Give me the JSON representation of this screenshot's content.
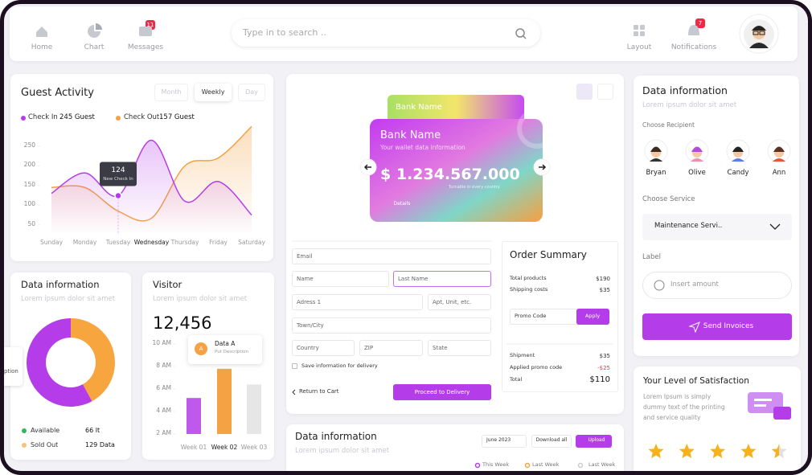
{
  "nav": {
    "items": [
      "Home",
      "Chart",
      "Messages"
    ],
    "messages_badge": 11,
    "search": "Type in to search ..",
    "right_items": [
      "Layout",
      "Notifications"
    ],
    "notifications_badge": 7
  },
  "guest_activity": {
    "title": "Guest Activity",
    "tabs": [
      "Month",
      "Weekly",
      "Day"
    ],
    "active_tab": 1,
    "chart_data": {
      "type": "line",
      "categories": [
        "Sunday",
        "Monday",
        "Tuesday",
        "Wednesday",
        "Thursday",
        "Friday",
        "Saturday"
      ],
      "highlight_category": 3,
      "series": [
        {
          "name": "Check In",
          "total": "245 Guest",
          "color": "#b43ce9",
          "values": [
            130,
            182,
            124,
            265,
            110,
            160,
            75
          ]
        },
        {
          "name": "Check Out",
          "total": "157 Guest",
          "color": "#f5a244",
          "values": [
            145,
            145,
            85,
            67,
            200,
            220,
            300
          ]
        }
      ],
      "ylim": [
        25,
        315
      ],
      "yticks": [
        250,
        200,
        150,
        100,
        50
      ],
      "tooltip": {
        "series": 0,
        "index": 2,
        "label": "New Check In"
      }
    }
  },
  "inventory": {
    "title": "Data information",
    "subtitle": "Lorem ipsum dolor sit amet",
    "clipped_label": "ption",
    "chart_data": {
      "type": "donut",
      "values": [
        42,
        58
      ],
      "colors": [
        "#f7a53f",
        "#b43ce9"
      ]
    },
    "legend": [
      {
        "name": "Available",
        "value": "66 lt",
        "color": "#2eb857"
      },
      {
        "name": "Sold Out",
        "value": "129 Data",
        "color": "#f7c27a"
      }
    ]
  },
  "visitor": {
    "title": "Visitor",
    "subtitle": "Lorem ipsum dolor sit amet",
    "total": "12,456",
    "chart_data": {
      "type": "bar",
      "categories": [
        "Week 01",
        "Week 02",
        "Week 03"
      ],
      "values": [
        5.2,
        7.8,
        6.4
      ],
      "colors": [
        "#b43ce9",
        "#f5a244",
        "#e2e2e2"
      ],
      "highlight": 1,
      "ylim": [
        2,
        10.5
      ],
      "yticks": [
        {
          "value": 10,
          "label": "10 AM"
        },
        {
          "value": 8,
          "label": "8 AM"
        },
        {
          "value": 6,
          "label": "6 AM"
        },
        {
          "value": 4,
          "label": "4 AM"
        },
        {
          "value": 2,
          "label": "2 AM"
        }
      ],
      "tooltip": {
        "badge": "A",
        "title": "Data A",
        "text": "Put Description"
      }
    }
  },
  "card": {
    "back_name": "Bank Name",
    "name": "Bank Name",
    "info": "Your wallet data information",
    "balance": "$ 1.234.567.000",
    "note": "Turnable in every country",
    "button": "Details"
  },
  "form": {
    "email": "Email",
    "name": "Name",
    "last_name": "Last Name",
    "address": "Adress 1",
    "apt": "Apt, Unit, etc.",
    "town": "Town/City",
    "country": "Country",
    "zip": "ZIP",
    "state": "State",
    "save": "Save information for delivery",
    "back": "Return to Cart",
    "submit": "Proceed to Delivery"
  },
  "order": {
    "title": "Order Summary",
    "rows": [
      [
        "Total products",
        "$190"
      ],
      [
        "Shipping costs",
        "$35"
      ]
    ],
    "promo": "Promo Code",
    "apply": "Apply",
    "rows2": [
      [
        "Shipment",
        "$35"
      ],
      [
        "Applied promo code",
        "-$25"
      ]
    ],
    "total": [
      "Total",
      "$110"
    ]
  },
  "invoice": {
    "title": "Data information",
    "subtitle": "Lorem ipsum dolor sit amet",
    "recipient_label": "Choose Recipient",
    "recipients": [
      "Bryan",
      "Olive",
      "Candy",
      "Ann"
    ],
    "service_label": "Choose Service",
    "service": "Maintenance Servi..",
    "label_label": "Label",
    "amount": "Insert amount",
    "send": "Send Invoices"
  },
  "satisfaction": {
    "title": "Your Level of Satisfaction",
    "text": "Lorem Ipsum is simply dummy text of the printing and service quality",
    "rating": 4.5,
    "max": 5
  },
  "bottom": {
    "title": "Data information",
    "subtitle": "Lorem ipsum dolor sit amet",
    "month": "June 2023",
    "download": "Download all",
    "upload": "Upload",
    "legend": [
      {
        "name": "This Week",
        "color": "#b43ce9"
      },
      {
        "name": "Last Week",
        "color": "#f5a244"
      },
      {
        "name": "Last Week",
        "color": "#cccccc"
      }
    ]
  }
}
